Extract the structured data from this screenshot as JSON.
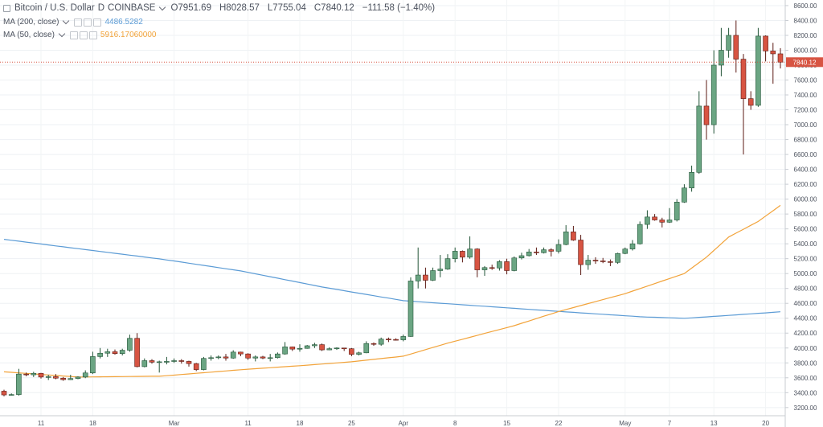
{
  "chart_data": {
    "type": "candlestick",
    "title": "Bitcoin / U.S. Dollar",
    "interval": "D",
    "exchange": "COINBASE",
    "ohlc_labels": [
      "O",
      "H",
      "L",
      "C"
    ],
    "change_label": "−111.58 (−1.40%)",
    "up_color": "#6ba583",
    "down_color": "#d75442",
    "up_wick": "#225437",
    "down_wick": "#5b1a13",
    "categories": [
      null,
      null,
      null,
      null,
      null,
      "11",
      null,
      null,
      null,
      null,
      null,
      null,
      "18",
      null,
      null,
      null,
      null,
      null,
      null,
      null,
      null,
      null,
      null,
      "Mar",
      null,
      null,
      null,
      null,
      null,
      null,
      null,
      null,
      null,
      "11",
      null,
      null,
      null,
      null,
      null,
      null,
      "18",
      null,
      null,
      null,
      null,
      null,
      null,
      "25",
      null,
      null,
      null,
      null,
      null,
      null,
      "Apr",
      null,
      null,
      null,
      null,
      null,
      null,
      "8",
      null,
      null,
      null,
      null,
      null,
      null,
      "15",
      null,
      null,
      null,
      null,
      null,
      null,
      "22",
      null,
      null,
      null,
      null,
      null,
      null,
      null,
      null,
      "May",
      null,
      null,
      null,
      null,
      null,
      "7",
      null,
      null,
      null,
      null,
      null,
      "13",
      null,
      null,
      null,
      null,
      null,
      null,
      "20",
      null,
      null
    ],
    "open": [
      3420,
      3370,
      3375,
      3650,
      3640,
      3660,
      3610,
      3615,
      3595,
      3575,
      3590,
      3610,
      3665,
      3885,
      3930,
      3950,
      3925,
      3970,
      4130,
      3750,
      3830,
      3810,
      3815,
      3820,
      3830,
      3820,
      3790,
      3710,
      3860,
      3870,
      3880,
      3865,
      3945,
      3920,
      3865,
      3880,
      3865,
      3870,
      3920,
      4015,
      3985,
      3995,
      4030,
      4045,
      3975,
      3990,
      4000,
      3990,
      3915,
      3935,
      4060,
      4050,
      4120,
      4115,
      4110,
      4155,
      4900,
      4980,
      4910,
      5040,
      5060,
      5200,
      5300,
      5220,
      5330,
      5050,
      5080,
      5075,
      5160,
      5040,
      5210,
      5240,
      5290,
      5280,
      5320,
      5300,
      5390,
      5560,
      5450,
      5120,
      5180,
      5170,
      5160,
      5150,
      5270,
      5330,
      5400,
      5660,
      5760,
      5720,
      5690,
      5720,
      5960,
      6150,
      6360,
      7250,
      7000,
      7800,
      8000,
      8200,
      7880,
      7350,
      7260,
      8190,
      7990,
      7951.69
    ],
    "high": [
      3440,
      3390,
      3720,
      3670,
      3680,
      3665,
      3640,
      3650,
      3610,
      3640,
      3620,
      3700,
      3950,
      4000,
      3990,
      3980,
      3990,
      4180,
      4200,
      3860,
      3850,
      3830,
      3880,
      3860,
      3850,
      3830,
      3800,
      3880,
      3900,
      3900,
      3920,
      3970,
      3950,
      3930,
      3900,
      3895,
      3920,
      3940,
      4080,
      4020,
      4050,
      4040,
      4070,
      4060,
      4010,
      4010,
      4000,
      4000,
      3950,
      4090,
      4075,
      4140,
      4140,
      4130,
      4180,
      4950,
      5350,
      5080,
      5080,
      5250,
      5260,
      5350,
      5310,
      5500,
      5340,
      5100,
      5120,
      5180,
      5200,
      5230,
      5280,
      5330,
      5350,
      5350,
      5340,
      5460,
      5650,
      5640,
      5520,
      5250,
      5220,
      5210,
      5190,
      5280,
      5350,
      5450,
      5700,
      5850,
      5800,
      5750,
      5880,
      6000,
      6200,
      6450,
      7450,
      7600,
      8000,
      8300,
      8300,
      8400,
      7950,
      7450,
      8300,
      8200,
      8100,
      8028.57
    ],
    "low": [
      3350,
      3360,
      3360,
      3620,
      3610,
      3590,
      3570,
      3580,
      3560,
      3570,
      3580,
      3595,
      3650,
      3860,
      3880,
      3910,
      3900,
      3950,
      3740,
      3740,
      3790,
      3670,
      3780,
      3800,
      3790,
      3750,
      3690,
      3700,
      3830,
      3850,
      3830,
      3855,
      3890,
      3840,
      3820,
      3850,
      3820,
      3860,
      3910,
      3960,
      3950,
      3990,
      4000,
      3960,
      3970,
      3975,
      3960,
      3890,
      3900,
      3930,
      4030,
      4030,
      4080,
      4100,
      4090,
      4150,
      4800,
      4800,
      4900,
      4950,
      5050,
      5150,
      5150,
      5200,
      4950,
      4970,
      5050,
      5040,
      4990,
      5030,
      5190,
      5230,
      5250,
      5270,
      5230,
      5270,
      5380,
      5440,
      4980,
      5050,
      5130,
      5140,
      5100,
      5130,
      5260,
      5310,
      5390,
      5600,
      5710,
      5620,
      5680,
      5700,
      5950,
      6100,
      6340,
      6800,
      6880,
      7650,
      7900,
      7700,
      6600,
      7200,
      7240,
      7850,
      7550,
      7755.04
    ],
    "close": [
      3370,
      3375,
      3650,
      3640,
      3660,
      3610,
      3615,
      3595,
      3575,
      3590,
      3610,
      3665,
      3885,
      3930,
      3950,
      3925,
      3970,
      4130,
      3750,
      3830,
      3810,
      3815,
      3820,
      3830,
      3820,
      3790,
      3710,
      3860,
      3870,
      3880,
      3865,
      3945,
      3920,
      3865,
      3880,
      3865,
      3870,
      3920,
      4015,
      3985,
      3995,
      4030,
      4045,
      3975,
      3990,
      4000,
      3990,
      3915,
      3935,
      4060,
      4050,
      4120,
      4115,
      4110,
      4155,
      4900,
      4980,
      4910,
      5040,
      5060,
      5200,
      5300,
      5220,
      5330,
      5050,
      5080,
      5075,
      5160,
      5040,
      5210,
      5240,
      5290,
      5280,
      5320,
      5300,
      5390,
      5560,
      5450,
      5120,
      5180,
      5170,
      5160,
      5150,
      5270,
      5330,
      5400,
      5660,
      5760,
      5720,
      5690,
      5720,
      5960,
      6150,
      6360,
      7250,
      7000,
      7800,
      8000,
      8200,
      7880,
      7350,
      7260,
      8190,
      7990,
      7951.69,
      7840.12
    ],
    "overlays": [
      {
        "name": "MA (200, close)",
        "color": "#5b9bd5",
        "legend_value": "4486.5282",
        "values": [
          5460,
          5447,
          5435,
          5422,
          5410,
          5397,
          5385,
          5372,
          5360,
          5347,
          5335,
          5322,
          5310,
          5297,
          5285,
          5272,
          5260,
          5247,
          5235,
          5222,
          5210,
          5198,
          5183,
          5169,
          5154,
          5139,
          5124,
          5110,
          5095,
          5080,
          5065,
          5051,
          5036,
          5016,
          4997,
          4977,
          4958,
          4938,
          4918,
          4899,
          4879,
          4859,
          4840,
          4820,
          4803,
          4787,
          4770,
          4753,
          4736,
          4720,
          4703,
          4686,
          4670,
          4653,
          4636,
          4629,
          4622,
          4615,
          4608,
          4601,
          4595,
          4588,
          4581,
          4574,
          4567,
          4561,
          4554,
          4547,
          4540,
          4533,
          4526,
          4519,
          4512,
          4506,
          4499,
          4492,
          4485,
          4479,
          4472,
          4466,
          4459,
          4453,
          4446,
          4440,
          4433,
          4427,
          4420,
          4416,
          4413,
          4409,
          4406,
          4402,
          4399,
          4405,
          4412,
          4418,
          4425,
          4431,
          4438,
          4445,
          4452,
          4459,
          4466,
          4472,
          4479,
          4486.5282
        ]
      },
      {
        "name": "MA (50, close)",
        "color": "#f2a33a",
        "legend_value": "5916.17060000",
        "values": [
          3680,
          3673,
          3666,
          3659,
          3652,
          3645,
          3638,
          3631,
          3624,
          3617,
          3610,
          3611,
          3612,
          3613,
          3614,
          3615,
          3616,
          3617,
          3618,
          3619,
          3620,
          3620,
          3628,
          3636,
          3644,
          3652,
          3660,
          3668,
          3676,
          3684,
          3692,
          3700,
          3708,
          3715,
          3722,
          3728,
          3735,
          3742,
          3749,
          3755,
          3762,
          3770,
          3777,
          3785,
          3792,
          3800,
          3807,
          3815,
          3826,
          3836,
          3847,
          3858,
          3869,
          3879,
          3890,
          3919,
          3948,
          3978,
          4007,
          4036,
          4065,
          4091,
          4117,
          4143,
          4169,
          4196,
          4222,
          4248,
          4274,
          4300,
          4332,
          4363,
          4395,
          4427,
          4458,
          4490,
          4517,
          4543,
          4570,
          4597,
          4623,
          4650,
          4677,
          4703,
          4730,
          4764,
          4798,
          4831,
          4865,
          4899,
          4933,
          4966,
          5000,
          5073,
          5147,
          5220,
          5310,
          5400,
          5490,
          5543,
          5595,
          5648,
          5700,
          5772,
          5844,
          5916.1706
        ]
      }
    ],
    "ylim": [
      3090,
      8675
    ],
    "yticks": [
      {
        "value": 3200,
        "label": "3200.00"
      },
      {
        "value": 3400,
        "label": "3400.00"
      },
      {
        "value": 3600,
        "label": "3600.00"
      },
      {
        "value": 3800,
        "label": "3800.00"
      },
      {
        "value": 4000,
        "label": "4000.00"
      },
      {
        "value": 4200,
        "label": "4200.00"
      },
      {
        "value": 4400,
        "label": "4400.00"
      },
      {
        "value": 4600,
        "label": "4600.00"
      },
      {
        "value": 4800,
        "label": "4800.00"
      },
      {
        "value": 5000,
        "label": "5000.00"
      },
      {
        "value": 5200,
        "label": "5200.00"
      },
      {
        "value": 5400,
        "label": "5400.00"
      },
      {
        "value": 5600,
        "label": "5600.00"
      },
      {
        "value": 5800,
        "label": "5800.00"
      },
      {
        "value": 6000,
        "label": "6000.00"
      },
      {
        "value": 6200,
        "label": "6200.00"
      },
      {
        "value": 6400,
        "label": "6400.00"
      },
      {
        "value": 6600,
        "label": "6600.00"
      },
      {
        "value": 6800,
        "label": "6800.00"
      },
      {
        "value": 7000,
        "label": "7000.00"
      },
      {
        "value": 7200,
        "label": "7200.00"
      },
      {
        "value": 7400,
        "label": "7400.00"
      },
      {
        "value": 7600,
        "label": "7600.00"
      },
      {
        "value": 7800,
        "label": "7800.00"
      },
      {
        "value": 8000,
        "label": "8000.00"
      },
      {
        "value": 8200,
        "label": "8200.00"
      },
      {
        "value": 8400,
        "label": "8400.00"
      },
      {
        "value": 8600,
        "label": "8600.00"
      }
    ],
    "grid": true
  }
}
